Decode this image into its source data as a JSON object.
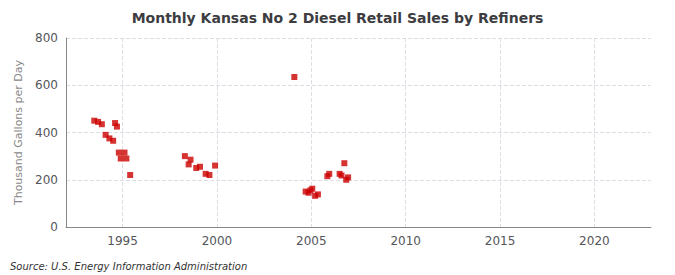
{
  "chart_data": {
    "type": "scatter",
    "title": "Monthly Kansas No 2 Diesel Retail Sales by Refiners",
    "ylabel": "Thousand Gallons per Day",
    "annotations": [
      "Source: U.S. Energy Information Administration"
    ],
    "x": [
      1993.5,
      1993.7,
      1993.9,
      1994.1,
      1994.3,
      1994.5,
      1994.6,
      1994.7,
      1994.8,
      1994.9,
      1995.1,
      1995.2,
      1995.4,
      1998.3,
      1998.5,
      1998.6,
      1998.9,
      1999.1,
      1999.4,
      1999.6,
      1999.9,
      2004.1,
      2004.7,
      2004.85,
      2004.95,
      2005.05,
      2005.2,
      2005.35,
      2005.85,
      2005.95,
      2006.5,
      2006.6,
      2006.75,
      2006.85,
      2006.95
    ],
    "values": [
      450,
      445,
      435,
      390,
      375,
      365,
      440,
      425,
      315,
      290,
      315,
      290,
      220,
      300,
      265,
      285,
      250,
      255,
      225,
      220,
      260,
      635,
      150,
      145,
      155,
      162,
      132,
      138,
      215,
      225,
      225,
      218,
      270,
      200,
      210
    ],
    "color": "#cc0000",
    "marker": "square",
    "xlim": [
      1992,
      2023
    ],
    "xticks": [
      1995,
      2000,
      2005,
      2010,
      2015,
      2020
    ],
    "ylim": [
      0,
      800
    ],
    "yticks": [
      0,
      200,
      400,
      600,
      800
    ],
    "grid": true
  }
}
